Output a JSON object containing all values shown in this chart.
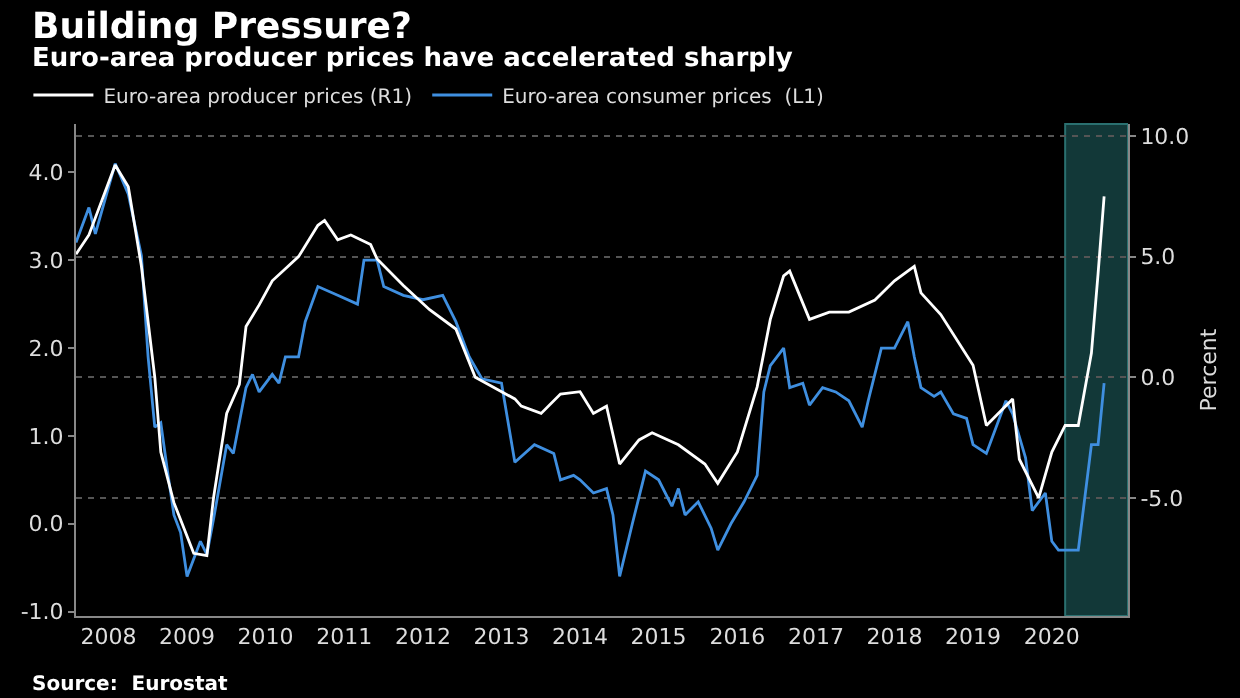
{
  "chart_data": {
    "type": "line",
    "title": "Building Pressure?",
    "subtitle": "Euro-area producer prices have accelerated sharply",
    "y2label": "Percent",
    "annotations": [
      "Source:  Eurostat"
    ],
    "xlim": [
      "2008-02",
      "2021-06-20"
    ],
    "xticks": [
      {
        "value": "2008-07-01",
        "label": "2008"
      },
      {
        "value": "2009-07-01",
        "label": "2009"
      },
      {
        "value": "2010-07-01",
        "label": "2010"
      },
      {
        "value": "2011-07-01",
        "label": "2011"
      },
      {
        "value": "2012-07-01",
        "label": "2012"
      },
      {
        "value": "2013-07-01",
        "label": "2013"
      },
      {
        "value": "2014-07-01",
        "label": "2014"
      },
      {
        "value": "2015-07-01",
        "label": "2015"
      },
      {
        "value": "2016-07-01",
        "label": "2016"
      },
      {
        "value": "2017-07-01",
        "label": "2017"
      },
      {
        "value": "2018-07-01",
        "label": "2018"
      },
      {
        "value": "2019-07-01",
        "label": "2019"
      },
      {
        "value": "2020-07-01",
        "label": "2020"
      }
    ],
    "ylim": [
      -1.05,
      4.55
    ],
    "yticks": [
      {
        "value": -1,
        "label": "-1.0"
      },
      {
        "value": 0,
        "label": "0.0"
      },
      {
        "value": 1,
        "label": "1.0"
      },
      {
        "value": 2,
        "label": "2.0"
      },
      {
        "value": 3,
        "label": "3.0"
      },
      {
        "value": 4,
        "label": "4.0"
      }
    ],
    "y2lim": [
      -9.9,
      10.5
    ],
    "y2ticks": [
      {
        "value": -5,
        "label": "-5.0"
      },
      {
        "value": 0,
        "label": "0.0"
      },
      {
        "value": 5,
        "label": "5.0"
      },
      {
        "value": 10,
        "label": "10.0"
      }
    ],
    "grid": "y",
    "legend": "top left",
    "line_style": "solid",
    "marker": "none",
    "bands": [
      {
        "axis": "x",
        "from": "2020-09",
        "to": "2021-06-20",
        "color": "#123838"
      }
    ],
    "series": [
      {
        "name": "Euro-area producer prices (R1)",
        "color": "#ffffff",
        "axis": "y2",
        "x": [
          "2008-02",
          "2008-04",
          "2008-08",
          "2008-10",
          "2008-12",
          "2009-02",
          "2009-03",
          "2009-05",
          "2009-08",
          "2009-10",
          "2009-11",
          "2010-01",
          "2010-03",
          "2010-04",
          "2010-06",
          "2010-08",
          "2010-10",
          "2010-12",
          "2011-03",
          "2011-04",
          "2011-06",
          "2011-08",
          "2011-11",
          "2011-12",
          "2012-04",
          "2012-08",
          "2012-12",
          "2013-03",
          "2013-09",
          "2013-10",
          "2014-01",
          "2014-04",
          "2014-07",
          "2014-09",
          "2014-11",
          "2015-01",
          "2015-04",
          "2015-06",
          "2015-10",
          "2016-02",
          "2016-04",
          "2016-07",
          "2016-10",
          "2016-12",
          "2017-02",
          "2017-03",
          "2017-06",
          "2017-09",
          "2017-12",
          "2018-04",
          "2018-07",
          "2018-10",
          "2018-11",
          "2019-02",
          "2019-07",
          "2019-09",
          "2020-01",
          "2020-02",
          "2020-05",
          "2020-07",
          "2020-09",
          "2020-11",
          "2021-01",
          "2021-02",
          "2021-03"
        ],
        "values": [
          5.1,
          5.9,
          8.8,
          7.9,
          4.6,
          0,
          -3.1,
          -5.2,
          -7.3,
          -7.4,
          -5.0,
          -1.5,
          -0.3,
          2.1,
          3.0,
          4.0,
          4.5,
          5.0,
          6.3,
          6.5,
          5.7,
          5.9,
          5.5,
          4.9,
          3.8,
          2.8,
          2.0,
          0,
          -0.9,
          -1.2,
          -1.5,
          -0.7,
          -0.6,
          -1.5,
          -1.2,
          -3.6,
          -2.6,
          -2.3,
          -2.8,
          -3.6,
          -4.4,
          -3.1,
          -0.4,
          2.4,
          4.2,
          4.4,
          2.4,
          2.7,
          2.7,
          3.2,
          4.0,
          4.6,
          3.5,
          2.6,
          0.5,
          -2.0,
          -0.9,
          -3.4,
          -5.0,
          -3.1,
          -2.0,
          -2.0,
          1.0,
          4.3,
          7.5
        ]
      },
      {
        "name": "Euro-area consumer prices  (L1)",
        "color": "#3f8fe0",
        "axis": "y",
        "x": [
          "2008-02",
          "2008-04",
          "2008-05",
          "2008-08",
          "2008-10",
          "2008-12",
          "2009-01",
          "2009-02",
          "2009-03",
          "2009-04",
          "2009-05",
          "2009-06",
          "2009-07",
          "2009-09",
          "2009-10",
          "2009-11",
          "2010-01",
          "2010-02",
          "2010-04",
          "2010-05",
          "2010-06",
          "2010-08",
          "2010-09",
          "2010-10",
          "2010-12",
          "2011-01",
          "2011-03",
          "2011-06",
          "2011-09",
          "2011-10",
          "2011-12",
          "2012-01",
          "2012-04",
          "2012-07",
          "2012-10",
          "2012-12",
          "2013-02",
          "2013-04",
          "2013-07",
          "2013-09",
          "2013-12",
          "2014-03",
          "2014-04",
          "2014-06",
          "2014-07",
          "2014-09",
          "2014-11",
          "2014-12",
          "2015-01",
          "2015-03",
          "2015-05",
          "2015-07",
          "2015-09",
          "2015-10",
          "2015-11",
          "2016-01",
          "2016-03",
          "2016-04",
          "2016-06",
          "2016-08",
          "2016-10",
          "2016-11",
          "2016-12",
          "2017-02",
          "2017-03",
          "2017-05",
          "2017-06",
          "2017-08",
          "2017-10",
          "2017-12",
          "2018-02",
          "2018-03",
          "2018-05",
          "2018-07",
          "2018-09",
          "2018-10",
          "2018-11",
          "2019-01",
          "2019-02",
          "2019-04",
          "2019-06",
          "2019-07",
          "2019-09",
          "2019-12",
          "2020-01",
          "2020-03",
          "2020-04",
          "2020-06",
          "2020-07",
          "2020-08",
          "2020-11",
          "2021-01",
          "2021-02",
          "2021-03"
        ],
        "values": [
          3.2,
          3.6,
          3.3,
          4.1,
          3.75,
          3.05,
          1.9,
          1.1,
          1.15,
          0.6,
          0.1,
          -0.1,
          -0.6,
          -0.2,
          -0.35,
          0.05,
          0.9,
          0.8,
          1.55,
          1.7,
          1.5,
          1.7,
          1.6,
          1.9,
          1.9,
          2.3,
          2.7,
          2.6,
          2.5,
          3.0,
          3.0,
          2.7,
          2.6,
          2.55,
          2.6,
          2.3,
          1.9,
          1.65,
          1.6,
          0.7,
          0.9,
          0.8,
          0.5,
          0.55,
          0.5,
          0.35,
          0.4,
          0.1,
          -0.6,
          0.0,
          0.6,
          0.5,
          0.2,
          0.4,
          0.1,
          0.25,
          -0.05,
          -0.3,
          0.0,
          0.25,
          0.55,
          1.5,
          1.8,
          2.0,
          1.55,
          1.6,
          1.35,
          1.55,
          1.5,
          1.4,
          1.1,
          1.4,
          2.0,
          2.0,
          2.3,
          1.9,
          1.55,
          1.45,
          1.5,
          1.25,
          1.2,
          0.9,
          0.8,
          1.4,
          1.25,
          0.75,
          0.15,
          0.35,
          -0.2,
          -0.3,
          -0.3,
          0.9,
          0.9,
          1.6
        ]
      }
    ]
  }
}
